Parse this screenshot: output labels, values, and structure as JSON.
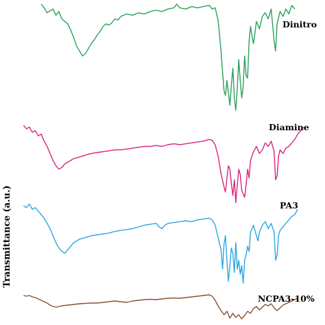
{
  "chart_data": {
    "type": "line",
    "title": "",
    "xlabel": "",
    "ylabel": "Transmittance (a.u.)",
    "grid": false,
    "legend": "inline labels at right of each trace",
    "note": "stacked FTIR spectra; x is position along the un-labelled wavenumber axis (0 = left edge, 100 = right edge); y is relative transmittance within each trace (0 = lowest dip, 100 = top of trace)",
    "series": [
      {
        "name": "Dinitro",
        "color": "#2aa05a",
        "points": [
          [
            7,
            100
          ],
          [
            8,
            97
          ],
          [
            9,
            93
          ],
          [
            11,
            96
          ],
          [
            12,
            91
          ],
          [
            13,
            94
          ],
          [
            14,
            88
          ],
          [
            15,
            86
          ],
          [
            16,
            84
          ],
          [
            17,
            79
          ],
          [
            18,
            73
          ],
          [
            19,
            66
          ],
          [
            20,
            62
          ],
          [
            21,
            58
          ],
          [
            22,
            60
          ],
          [
            23,
            64
          ],
          [
            24,
            68
          ],
          [
            25,
            71
          ],
          [
            26,
            75
          ],
          [
            27,
            78
          ],
          [
            28,
            82
          ],
          [
            29,
            84
          ],
          [
            30,
            83
          ],
          [
            31,
            85
          ],
          [
            32,
            88
          ],
          [
            33,
            87
          ],
          [
            34,
            90
          ],
          [
            36,
            92
          ],
          [
            38,
            91
          ],
          [
            40,
            93
          ],
          [
            42,
            92
          ],
          [
            44,
            94
          ],
          [
            46,
            95
          ],
          [
            48,
            94
          ],
          [
            50,
            96
          ],
          [
            52,
            97
          ],
          [
            53,
            100
          ],
          [
            54,
            97
          ],
          [
            56,
            96
          ],
          [
            58,
            98
          ],
          [
            60,
            97
          ],
          [
            62,
            98
          ],
          [
            64,
            99
          ],
          [
            65,
            96
          ],
          [
            66,
            97
          ],
          [
            67,
            87
          ],
          [
            68,
            62
          ],
          [
            68.5,
            45
          ],
          [
            69,
            30
          ],
          [
            69.5,
            26
          ],
          [
            70,
            38
          ],
          [
            70.5,
            28
          ],
          [
            71,
            18
          ],
          [
            71.5,
            34
          ],
          [
            72,
            48
          ],
          [
            72.5,
            24
          ],
          [
            73,
            14
          ],
          [
            73.5,
            32
          ],
          [
            74,
            55
          ],
          [
            74.5,
            38
          ],
          [
            75,
            24
          ],
          [
            75.5,
            33
          ],
          [
            76,
            58
          ],
          [
            76.5,
            42
          ],
          [
            77,
            40
          ],
          [
            77.5,
            70
          ],
          [
            78,
            82
          ],
          [
            78.5,
            74
          ],
          [
            79,
            68
          ],
          [
            80,
            86
          ],
          [
            81,
            80
          ],
          [
            82,
            90
          ],
          [
            83,
            93
          ],
          [
            84,
            88
          ],
          [
            85,
            96
          ],
          [
            86,
            70
          ],
          [
            86.5,
            62
          ],
          [
            87,
            84
          ],
          [
            88,
            94
          ],
          [
            89,
            90
          ],
          [
            90,
            96
          ],
          [
            91,
            92
          ],
          [
            92,
            99
          ],
          [
            93,
            96
          ]
        ]
      },
      {
        "name": "Diamine",
        "color": "#d6257f",
        "points": [
          [
            1,
            90
          ],
          [
            2,
            86
          ],
          [
            3,
            88
          ],
          [
            4,
            82
          ],
          [
            5,
            84
          ],
          [
            6,
            78
          ],
          [
            7,
            80
          ],
          [
            8,
            72
          ],
          [
            9,
            66
          ],
          [
            10,
            58
          ],
          [
            11,
            50
          ],
          [
            12,
            44
          ],
          [
            13,
            40
          ],
          [
            14,
            42
          ],
          [
            15,
            46
          ],
          [
            16,
            48
          ],
          [
            18,
            52
          ],
          [
            20,
            54
          ],
          [
            22,
            56
          ],
          [
            24,
            58
          ],
          [
            26,
            59
          ],
          [
            28,
            60
          ],
          [
            30,
            61
          ],
          [
            32,
            62
          ],
          [
            34,
            62
          ],
          [
            36,
            63
          ],
          [
            38,
            64
          ],
          [
            40,
            65
          ],
          [
            42,
            66
          ],
          [
            44,
            66
          ],
          [
            46,
            67
          ],
          [
            48,
            66
          ],
          [
            50,
            68
          ],
          [
            52,
            69
          ],
          [
            54,
            68
          ],
          [
            56,
            69
          ],
          [
            58,
            70
          ],
          [
            60,
            71
          ],
          [
            62,
            72
          ],
          [
            64,
            74
          ],
          [
            65,
            73
          ],
          [
            66,
            68
          ],
          [
            67,
            55
          ],
          [
            68,
            35
          ],
          [
            69,
            20
          ],
          [
            69.5,
            14
          ],
          [
            70,
            30
          ],
          [
            70.5,
            44
          ],
          [
            71,
            40
          ],
          [
            71.5,
            24
          ],
          [
            72,
            10
          ],
          [
            72.5,
            28
          ],
          [
            73,
            2
          ],
          [
            73.5,
            22
          ],
          [
            74,
            40
          ],
          [
            74.5,
            34
          ],
          [
            75,
            16
          ],
          [
            75.5,
            12
          ],
          [
            76,
            8
          ],
          [
            76.5,
            22
          ],
          [
            77,
            40
          ],
          [
            77.5,
            30
          ],
          [
            78,
            50
          ],
          [
            79,
            60
          ],
          [
            80,
            66
          ],
          [
            81,
            58
          ],
          [
            82,
            62
          ],
          [
            83,
            70
          ],
          [
            84,
            66
          ],
          [
            85,
            72
          ],
          [
            86,
            60
          ],
          [
            86.5,
            28
          ],
          [
            87,
            32
          ],
          [
            87.5,
            55
          ],
          [
            88,
            62
          ],
          [
            89,
            58
          ],
          [
            90,
            64
          ],
          [
            91,
            66
          ],
          [
            92,
            70
          ],
          [
            93,
            74
          ],
          [
            94,
            80
          ],
          [
            95,
            84
          ],
          [
            96,
            88
          ]
        ]
      },
      {
        "name": "PA3",
        "color": "#2aa7df",
        "points": [
          [
            1,
            92
          ],
          [
            2,
            90
          ],
          [
            3,
            94
          ],
          [
            4,
            88
          ],
          [
            5,
            90
          ],
          [
            6,
            86
          ],
          [
            7,
            82
          ],
          [
            8,
            78
          ],
          [
            9,
            72
          ],
          [
            10,
            66
          ],
          [
            11,
            58
          ],
          [
            12,
            50
          ],
          [
            13,
            44
          ],
          [
            14,
            40
          ],
          [
            15,
            38
          ],
          [
            16,
            42
          ],
          [
            17,
            46
          ],
          [
            18,
            50
          ],
          [
            20,
            54
          ],
          [
            22,
            56
          ],
          [
            24,
            58
          ],
          [
            26,
            59
          ],
          [
            28,
            60
          ],
          [
            30,
            61
          ],
          [
            32,
            63
          ],
          [
            34,
            64
          ],
          [
            36,
            65
          ],
          [
            38,
            66
          ],
          [
            40,
            68
          ],
          [
            42,
            70
          ],
          [
            44,
            71
          ],
          [
            46,
            72
          ],
          [
            47,
            68
          ],
          [
            48,
            66
          ],
          [
            49,
            70
          ],
          [
            50,
            72
          ],
          [
            52,
            73
          ],
          [
            54,
            74
          ],
          [
            56,
            75
          ],
          [
            58,
            74
          ],
          [
            60,
            76
          ],
          [
            62,
            77
          ],
          [
            64,
            78
          ],
          [
            65,
            76
          ],
          [
            66,
            70
          ],
          [
            67,
            56
          ],
          [
            68,
            42
          ],
          [
            68.5,
            20
          ],
          [
            69,
            48
          ],
          [
            69.5,
            58
          ],
          [
            70,
            30
          ],
          [
            70.5,
            6
          ],
          [
            71,
            24
          ],
          [
            71.5,
            44
          ],
          [
            72,
            38
          ],
          [
            72.5,
            16
          ],
          [
            73,
            50
          ],
          [
            73.5,
            20
          ],
          [
            74,
            30
          ],
          [
            74.5,
            14
          ],
          [
            75,
            24
          ],
          [
            75.5,
            4
          ],
          [
            76,
            30
          ],
          [
            76.5,
            36
          ],
          [
            77,
            46
          ],
          [
            77.5,
            40
          ],
          [
            78,
            62
          ],
          [
            79,
            70
          ],
          [
            80,
            58
          ],
          [
            80.5,
            52
          ],
          [
            81,
            62
          ],
          [
            82,
            70
          ],
          [
            83,
            74
          ],
          [
            84,
            66
          ],
          [
            85,
            72
          ],
          [
            86,
            62
          ],
          [
            86.5,
            30
          ],
          [
            87,
            36
          ],
          [
            87.5,
            58
          ],
          [
            88,
            64
          ],
          [
            89,
            68
          ],
          [
            90,
            72
          ],
          [
            91,
            76
          ],
          [
            92,
            80
          ],
          [
            93,
            82
          ],
          [
            94,
            88
          ]
        ]
      },
      {
        "name": "NCPA3-10%",
        "color": "#8a4f2e",
        "points": [
          [
            1,
            86
          ],
          [
            2,
            84
          ],
          [
            3,
            86
          ],
          [
            4,
            82
          ],
          [
            5,
            80
          ],
          [
            6,
            76
          ],
          [
            7,
            72
          ],
          [
            8,
            68
          ],
          [
            9,
            64
          ],
          [
            10,
            58
          ],
          [
            11,
            54
          ],
          [
            12,
            52
          ],
          [
            13,
            54
          ],
          [
            14,
            56
          ],
          [
            16,
            58
          ],
          [
            18,
            60
          ],
          [
            20,
            62
          ],
          [
            22,
            63
          ],
          [
            24,
            64
          ],
          [
            26,
            64
          ],
          [
            28,
            66
          ],
          [
            30,
            68
          ],
          [
            32,
            70
          ],
          [
            34,
            68
          ],
          [
            36,
            66
          ],
          [
            38,
            70
          ],
          [
            40,
            72
          ],
          [
            42,
            74
          ],
          [
            44,
            75
          ],
          [
            46,
            74
          ],
          [
            48,
            76
          ],
          [
            50,
            78
          ],
          [
            52,
            79
          ],
          [
            54,
            78
          ],
          [
            56,
            80
          ],
          [
            58,
            82
          ],
          [
            60,
            84
          ],
          [
            62,
            86
          ],
          [
            64,
            88
          ],
          [
            65,
            84
          ],
          [
            66,
            72
          ],
          [
            67,
            56
          ],
          [
            68,
            42
          ],
          [
            69,
            30
          ],
          [
            70,
            40
          ],
          [
            71,
            20
          ],
          [
            72,
            34
          ],
          [
            73,
            22
          ],
          [
            74,
            30
          ],
          [
            75,
            18
          ],
          [
            76,
            28
          ],
          [
            77,
            40
          ],
          [
            78,
            34
          ],
          [
            79,
            48
          ],
          [
            80,
            54
          ],
          [
            81,
            44
          ],
          [
            82,
            52
          ],
          [
            83,
            60
          ],
          [
            84,
            56
          ],
          [
            85,
            62
          ],
          [
            86,
            50
          ],
          [
            87,
            42
          ],
          [
            88,
            50
          ],
          [
            89,
            58
          ],
          [
            90,
            62
          ],
          [
            91,
            66
          ],
          [
            92,
            70
          ],
          [
            93,
            74
          ],
          [
            94,
            78
          ]
        ]
      }
    ]
  }
}
